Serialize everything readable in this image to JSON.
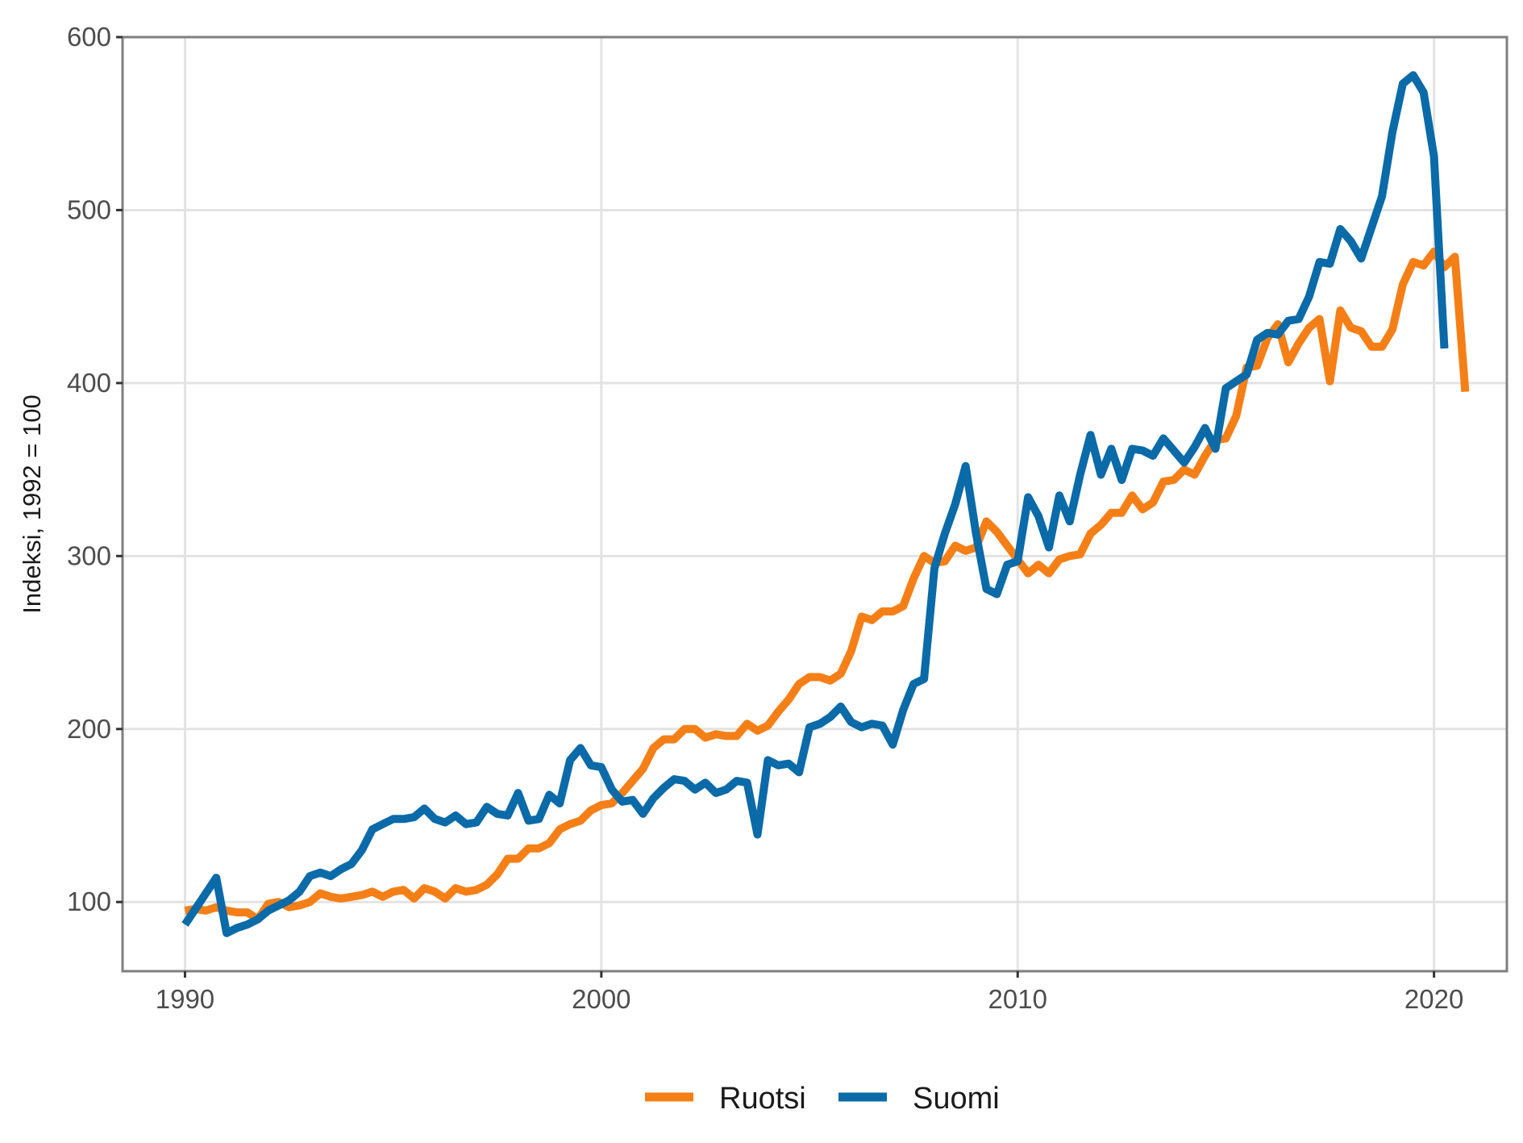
{
  "chart_data": {
    "type": "line",
    "title": "",
    "xlabel": "",
    "ylabel": "Indeksi, 1992 = 100",
    "xlim": [
      1988.5,
      2021.75
    ],
    "ylim": [
      60,
      600
    ],
    "x_ticks": [
      "1990",
      "2000",
      "2010",
      "2020"
    ],
    "y_ticks": [
      "100",
      "200",
      "300",
      "400",
      "500",
      "600"
    ],
    "grid": true,
    "legend_position": "bottom",
    "series": [
      {
        "name": "Ruotsi",
        "color": "#f57f17",
        "points": [
          [
            1990.0,
            95
          ],
          [
            1990.25,
            96
          ],
          [
            1990.5,
            95
          ],
          [
            1990.75,
            97
          ],
          [
            1991.0,
            95
          ],
          [
            1991.25,
            94
          ],
          [
            1991.5,
            94
          ],
          [
            1991.75,
            90
          ],
          [
            1992.0,
            99
          ],
          [
            1992.25,
            100
          ],
          [
            1992.5,
            97
          ],
          [
            1992.75,
            98
          ],
          [
            1993.0,
            100
          ],
          [
            1993.25,
            105
          ],
          [
            1993.5,
            103
          ],
          [
            1993.75,
            102
          ],
          [
            1994.0,
            103
          ],
          [
            1994.25,
            104
          ],
          [
            1994.5,
            106
          ],
          [
            1994.75,
            103
          ],
          [
            1995.0,
            106
          ],
          [
            1995.25,
            107
          ],
          [
            1995.5,
            102
          ],
          [
            1995.75,
            108
          ],
          [
            1996.0,
            106
          ],
          [
            1996.25,
            102
          ],
          [
            1996.5,
            108
          ],
          [
            1996.75,
            106
          ],
          [
            1997.0,
            107
          ],
          [
            1997.25,
            110
          ],
          [
            1997.5,
            116
          ],
          [
            1997.75,
            125
          ],
          [
            1998.0,
            125
          ],
          [
            1998.25,
            131
          ],
          [
            1998.5,
            131
          ],
          [
            1998.75,
            134
          ],
          [
            1999.0,
            142
          ],
          [
            1999.25,
            145
          ],
          [
            1999.5,
            147
          ],
          [
            1999.75,
            153
          ],
          [
            2000.0,
            156
          ],
          [
            2000.25,
            157
          ],
          [
            2000.5,
            163
          ],
          [
            2000.75,
            170
          ],
          [
            2001.0,
            177
          ],
          [
            2001.25,
            189
          ],
          [
            2001.5,
            194
          ],
          [
            2001.75,
            194
          ],
          [
            2002.0,
            200
          ],
          [
            2002.25,
            200
          ],
          [
            2002.5,
            195
          ],
          [
            2002.75,
            197
          ],
          [
            2003.0,
            196
          ],
          [
            2003.25,
            196
          ],
          [
            2003.5,
            203
          ],
          [
            2003.75,
            199
          ],
          [
            2004.0,
            202
          ],
          [
            2004.25,
            210
          ],
          [
            2004.5,
            217
          ],
          [
            2004.75,
            226
          ],
          [
            2005.0,
            230
          ],
          [
            2005.25,
            230
          ],
          [
            2005.5,
            228
          ],
          [
            2005.75,
            232
          ],
          [
            2006.0,
            245
          ],
          [
            2006.25,
            265
          ],
          [
            2006.5,
            263
          ],
          [
            2006.75,
            268
          ],
          [
            2007.0,
            268
          ],
          [
            2007.25,
            271
          ],
          [
            2007.5,
            287
          ],
          [
            2007.75,
            300
          ],
          [
            2008.0,
            296
          ],
          [
            2008.25,
            297
          ],
          [
            2008.5,
            306
          ],
          [
            2008.75,
            303
          ],
          [
            2009.0,
            305
          ],
          [
            2009.25,
            320
          ],
          [
            2009.5,
            314
          ],
          [
            2009.75,
            306
          ],
          [
            2010.0,
            298
          ],
          [
            2010.25,
            290
          ],
          [
            2010.5,
            295
          ],
          [
            2010.75,
            290
          ],
          [
            2011.0,
            298
          ],
          [
            2011.25,
            300
          ],
          [
            2011.5,
            301
          ],
          [
            2011.75,
            313
          ],
          [
            2012.0,
            318
          ],
          [
            2012.25,
            325
          ],
          [
            2012.5,
            325
          ],
          [
            2012.75,
            335
          ],
          [
            2013.0,
            327
          ],
          [
            2013.25,
            331
          ],
          [
            2013.5,
            343
          ],
          [
            2013.75,
            344
          ],
          [
            2014.0,
            350
          ],
          [
            2014.25,
            347
          ],
          [
            2014.5,
            358
          ],
          [
            2014.75,
            367
          ],
          [
            2015.0,
            368
          ],
          [
            2015.25,
            381
          ],
          [
            2015.5,
            409
          ],
          [
            2015.75,
            410
          ],
          [
            2016.0,
            426
          ],
          [
            2016.25,
            434
          ],
          [
            2016.5,
            412
          ],
          [
            2016.75,
            423
          ],
          [
            2017.0,
            432
          ],
          [
            2017.25,
            437
          ],
          [
            2017.5,
            401
          ],
          [
            2017.75,
            442
          ],
          [
            2018.0,
            432
          ],
          [
            2018.25,
            430
          ],
          [
            2018.5,
            421
          ],
          [
            2018.75,
            421
          ],
          [
            2019.0,
            431
          ],
          [
            2019.25,
            457
          ],
          [
            2019.5,
            470
          ],
          [
            2019.75,
            468
          ],
          [
            2020.0,
            476
          ],
          [
            2020.25,
            467
          ],
          [
            2020.5,
            473
          ],
          [
            2020.75,
            395
          ]
        ]
      },
      {
        "name": "Suomi",
        "color": "#0b6aa8",
        "points": [
          [
            1990.0,
            87
          ],
          [
            1990.25,
            96
          ],
          [
            1990.5,
            105
          ],
          [
            1990.75,
            114
          ],
          [
            1991.0,
            82
          ],
          [
            1991.25,
            85
          ],
          [
            1991.5,
            87
          ],
          [
            1991.75,
            90
          ],
          [
            1992.0,
            95
          ],
          [
            1992.25,
            98
          ],
          [
            1992.5,
            101
          ],
          [
            1992.75,
            106
          ],
          [
            1993.0,
            115
          ],
          [
            1993.25,
            117
          ],
          [
            1993.5,
            115
          ],
          [
            1993.75,
            119
          ],
          [
            1994.0,
            122
          ],
          [
            1994.25,
            130
          ],
          [
            1994.5,
            142
          ],
          [
            1994.75,
            145
          ],
          [
            1995.0,
            148
          ],
          [
            1995.25,
            148
          ],
          [
            1995.5,
            149
          ],
          [
            1995.75,
            154
          ],
          [
            1996.0,
            148
          ],
          [
            1996.25,
            146
          ],
          [
            1996.5,
            150
          ],
          [
            1996.75,
            145
          ],
          [
            1997.0,
            146
          ],
          [
            1997.25,
            155
          ],
          [
            1997.5,
            151
          ],
          [
            1997.75,
            150
          ],
          [
            1998.0,
            163
          ],
          [
            1998.25,
            147
          ],
          [
            1998.5,
            148
          ],
          [
            1998.75,
            162
          ],
          [
            1999.0,
            157
          ],
          [
            1999.25,
            182
          ],
          [
            1999.5,
            189
          ],
          [
            1999.75,
            179
          ],
          [
            2000.0,
            178
          ],
          [
            2000.25,
            165
          ],
          [
            2000.5,
            158
          ],
          [
            2000.75,
            159
          ],
          [
            2001.0,
            151
          ],
          [
            2001.25,
            160
          ],
          [
            2001.5,
            166
          ],
          [
            2001.75,
            171
          ],
          [
            2002.0,
            170
          ],
          [
            2002.25,
            165
          ],
          [
            2002.5,
            169
          ],
          [
            2002.75,
            163
          ],
          [
            2003.0,
            165
          ],
          [
            2003.25,
            170
          ],
          [
            2003.5,
            169
          ],
          [
            2003.75,
            139
          ],
          [
            2004.0,
            182
          ],
          [
            2004.25,
            179
          ],
          [
            2004.5,
            180
          ],
          [
            2004.75,
            175
          ],
          [
            2005.0,
            201
          ],
          [
            2005.25,
            203
          ],
          [
            2005.5,
            207
          ],
          [
            2005.75,
            213
          ],
          [
            2006.0,
            204
          ],
          [
            2006.25,
            201
          ],
          [
            2006.5,
            203
          ],
          [
            2006.75,
            202
          ],
          [
            2007.0,
            191
          ],
          [
            2007.25,
            211
          ],
          [
            2007.5,
            226
          ],
          [
            2007.75,
            229
          ],
          [
            2008.0,
            293
          ],
          [
            2008.25,
            313
          ],
          [
            2008.5,
            330
          ],
          [
            2008.75,
            352
          ],
          [
            2009.0,
            313
          ],
          [
            2009.25,
            281
          ],
          [
            2009.5,
            278
          ],
          [
            2009.75,
            295
          ],
          [
            2010.0,
            297
          ],
          [
            2010.25,
            334
          ],
          [
            2010.5,
            323
          ],
          [
            2010.75,
            305
          ],
          [
            2011.0,
            335
          ],
          [
            2011.25,
            320
          ],
          [
            2011.5,
            347
          ],
          [
            2011.75,
            370
          ],
          [
            2012.0,
            347
          ],
          [
            2012.25,
            362
          ],
          [
            2012.5,
            344
          ],
          [
            2012.75,
            362
          ],
          [
            2013.0,
            361
          ],
          [
            2013.25,
            358
          ],
          [
            2013.5,
            368
          ],
          [
            2013.75,
            361
          ],
          [
            2014.0,
            354
          ],
          [
            2014.25,
            363
          ],
          [
            2014.5,
            374
          ],
          [
            2014.75,
            362
          ],
          [
            2015.0,
            397
          ],
          [
            2015.25,
            401
          ],
          [
            2015.5,
            405
          ],
          [
            2015.75,
            425
          ],
          [
            2016.0,
            429
          ],
          [
            2016.25,
            428
          ],
          [
            2016.5,
            436
          ],
          [
            2016.75,
            437
          ],
          [
            2017.0,
            450
          ],
          [
            2017.25,
            470
          ],
          [
            2017.5,
            469
          ],
          [
            2017.75,
            489
          ],
          [
            2018.0,
            482
          ],
          [
            2018.25,
            472
          ],
          [
            2018.5,
            490
          ],
          [
            2018.75,
            508
          ],
          [
            2019.0,
            545
          ],
          [
            2019.25,
            573
          ],
          [
            2019.5,
            578
          ],
          [
            2019.75,
            568
          ],
          [
            2020.0,
            531
          ],
          [
            2020.25,
            420
          ]
        ]
      }
    ]
  }
}
